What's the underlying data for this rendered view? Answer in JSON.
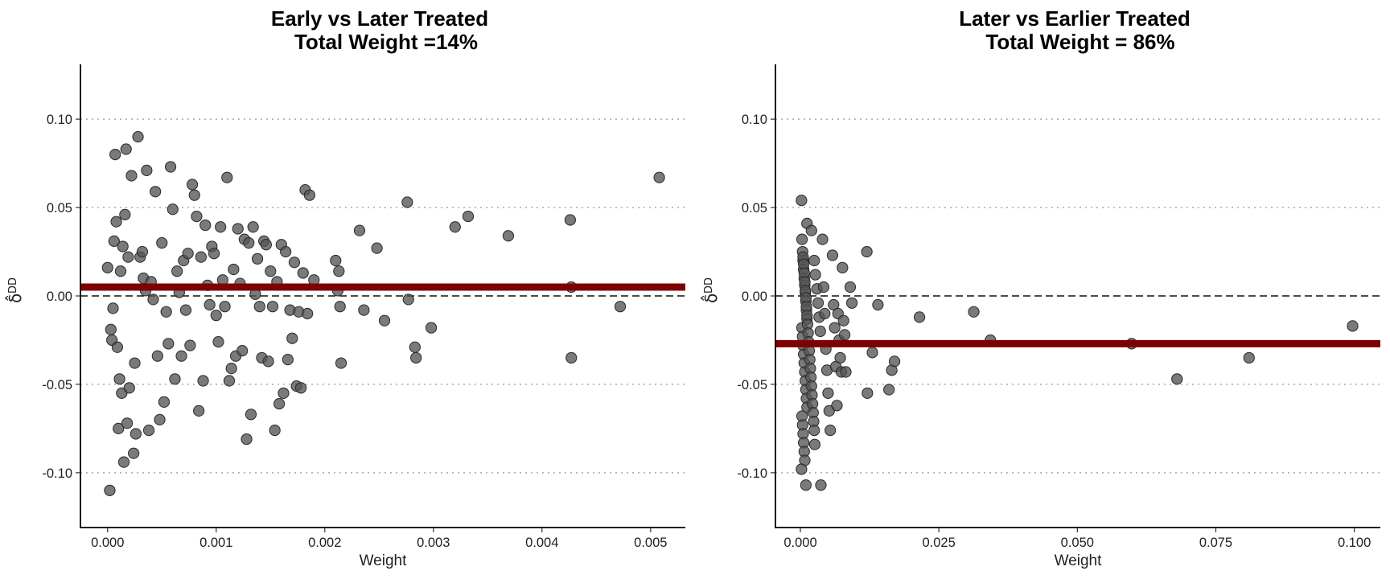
{
  "chart_data": [
    {
      "type": "scatter",
      "title_line1": "Early vs Later Treated",
      "title_line2": "Total Weight =14%",
      "xlabel": "Weight",
      "ylabel": "δ̂",
      "ylabel_sup": "DD",
      "xlim": [
        -0.00025,
        0.00532
      ],
      "ylim": [
        -0.131,
        0.131
      ],
      "x_ticks": [
        0.0,
        0.001,
        0.002,
        0.003,
        0.004,
        0.005
      ],
      "x_tick_labels": [
        "0.000",
        "0.001",
        "0.002",
        "0.003",
        "0.004",
        "0.005"
      ],
      "y_ticks": [
        -0.1,
        -0.05,
        0.0,
        0.05,
        0.1
      ],
      "y_tick_labels": [
        "-0.10",
        "-0.05",
        "0.00",
        "0.05",
        "0.10"
      ],
      "grid": "horizontal dotted at y ticks",
      "reference_line_y": 0.0,
      "average_line_y": 0.005,
      "average_line_color": "#7f0000",
      "point_color": "#555555",
      "points": [
        [
          0.0,
          0.016
        ],
        [
          2e-05,
          -0.11
        ],
        [
          3e-05,
          -0.019
        ],
        [
          4e-05,
          -0.025
        ],
        [
          5e-05,
          -0.007
        ],
        [
          6e-05,
          0.031
        ],
        [
          7e-05,
          0.08
        ],
        [
          8e-05,
          0.042
        ],
        [
          9e-05,
          -0.029
        ],
        [
          0.0001,
          -0.075
        ],
        [
          0.00011,
          -0.047
        ],
        [
          0.00012,
          0.014
        ],
        [
          0.00013,
          -0.055
        ],
        [
          0.00014,
          0.028
        ],
        [
          0.00015,
          -0.094
        ],
        [
          0.00016,
          0.046
        ],
        [
          0.00017,
          0.083
        ],
        [
          0.00018,
          -0.072
        ],
        [
          0.00019,
          0.022
        ],
        [
          0.0002,
          -0.052
        ],
        [
          0.00022,
          0.068
        ],
        [
          0.00024,
          -0.089
        ],
        [
          0.00025,
          -0.038
        ],
        [
          0.00026,
          -0.078
        ],
        [
          0.00028,
          0.09
        ],
        [
          0.0003,
          0.022
        ],
        [
          0.00032,
          0.025
        ],
        [
          0.00033,
          0.01
        ],
        [
          0.00035,
          0.003
        ],
        [
          0.00036,
          0.071
        ],
        [
          0.00038,
          -0.076
        ],
        [
          0.0004,
          0.008
        ],
        [
          0.00042,
          -0.002
        ],
        [
          0.00044,
          0.059
        ],
        [
          0.00046,
          -0.034
        ],
        [
          0.00048,
          -0.07
        ],
        [
          0.0005,
          0.03
        ],
        [
          0.00052,
          -0.06
        ],
        [
          0.00054,
          -0.009
        ],
        [
          0.00056,
          -0.027
        ],
        [
          0.00058,
          0.073
        ],
        [
          0.0006,
          0.049
        ],
        [
          0.00062,
          -0.047
        ],
        [
          0.00064,
          0.014
        ],
        [
          0.00066,
          0.002
        ],
        [
          0.00068,
          -0.034
        ],
        [
          0.0007,
          0.02
        ],
        [
          0.00072,
          -0.008
        ],
        [
          0.00074,
          0.024
        ],
        [
          0.00076,
          -0.028
        ],
        [
          0.00078,
          0.063
        ],
        [
          0.0008,
          0.057
        ],
        [
          0.00082,
          0.045
        ],
        [
          0.00084,
          -0.065
        ],
        [
          0.00086,
          0.022
        ],
        [
          0.00088,
          -0.048
        ],
        [
          0.0009,
          0.04
        ],
        [
          0.00092,
          0.006
        ],
        [
          0.00094,
          -0.005
        ],
        [
          0.00096,
          0.028
        ],
        [
          0.00098,
          0.024
        ],
        [
          0.001,
          -0.011
        ],
        [
          0.00102,
          -0.026
        ],
        [
          0.00104,
          0.039
        ],
        [
          0.00106,
          0.009
        ],
        [
          0.00108,
          -0.006
        ],
        [
          0.0011,
          0.067
        ],
        [
          0.00112,
          -0.048
        ],
        [
          0.00114,
          -0.041
        ],
        [
          0.00116,
          0.015
        ],
        [
          0.00118,
          -0.034
        ],
        [
          0.0012,
          0.038
        ],
        [
          0.00122,
          0.007
        ],
        [
          0.00124,
          -0.031
        ],
        [
          0.00126,
          0.032
        ],
        [
          0.00128,
          -0.081
        ],
        [
          0.0013,
          0.03
        ],
        [
          0.00132,
          -0.067
        ],
        [
          0.00134,
          0.039
        ],
        [
          0.00136,
          0.001
        ],
        [
          0.00138,
          0.021
        ],
        [
          0.0014,
          -0.006
        ],
        [
          0.00142,
          -0.035
        ],
        [
          0.00144,
          0.031
        ],
        [
          0.00146,
          0.029
        ],
        [
          0.00148,
          -0.037
        ],
        [
          0.0015,
          0.014
        ],
        [
          0.00152,
          -0.006
        ],
        [
          0.00154,
          -0.076
        ],
        [
          0.00156,
          0.008
        ],
        [
          0.00158,
          -0.061
        ],
        [
          0.0016,
          0.029
        ],
        [
          0.00162,
          -0.055
        ],
        [
          0.00164,
          0.025
        ],
        [
          0.00166,
          -0.036
        ],
        [
          0.00168,
          -0.008
        ],
        [
          0.0017,
          -0.024
        ],
        [
          0.00172,
          0.019
        ],
        [
          0.00174,
          -0.051
        ],
        [
          0.00176,
          -0.009
        ],
        [
          0.00178,
          -0.052
        ],
        [
          0.0018,
          0.013
        ],
        [
          0.00182,
          0.06
        ],
        [
          0.00184,
          -0.01
        ],
        [
          0.00186,
          0.057
        ],
        [
          0.0019,
          0.009
        ],
        [
          0.0021,
          0.02
        ],
        [
          0.00212,
          0.003
        ],
        [
          0.00213,
          0.014
        ],
        [
          0.00214,
          -0.006
        ],
        [
          0.00215,
          -0.038
        ],
        [
          0.00232,
          0.037
        ],
        [
          0.00236,
          -0.008
        ],
        [
          0.00248,
          0.027
        ],
        [
          0.00255,
          -0.014
        ],
        [
          0.00276,
          0.053
        ],
        [
          0.00277,
          -0.002
        ],
        [
          0.00283,
          -0.029
        ],
        [
          0.00284,
          -0.035
        ],
        [
          0.00298,
          -0.018
        ],
        [
          0.0032,
          0.039
        ],
        [
          0.00332,
          0.045
        ],
        [
          0.00369,
          0.034
        ],
        [
          0.00426,
          0.043
        ],
        [
          0.00427,
          0.005
        ],
        [
          0.00427,
          -0.035
        ],
        [
          0.00472,
          -0.006
        ],
        [
          0.00508,
          0.067
        ]
      ]
    },
    {
      "type": "scatter",
      "title_line1": "Later vs Earlier Treated",
      "title_line2": "Total Weight = 86%",
      "xlabel": "Weight",
      "ylabel": "δ̂",
      "ylabel_sup": "DD",
      "xlim": [
        -0.0045,
        0.1047
      ],
      "ylim": [
        -0.131,
        0.131
      ],
      "x_ticks": [
        0.0,
        0.025,
        0.05,
        0.075,
        0.1
      ],
      "x_tick_labels": [
        "0.000",
        "0.025",
        "0.050",
        "0.075",
        "0.100"
      ],
      "y_ticks": [
        -0.1,
        -0.05,
        0.0,
        0.05,
        0.1
      ],
      "y_tick_labels": [
        "-0.10",
        "-0.05",
        "0.00",
        "0.05",
        "0.10"
      ],
      "grid": "horizontal dotted at y ticks",
      "reference_line_y": 0.0,
      "average_line_y": -0.027,
      "average_line_color": "#7f0000",
      "point_color": "#555555",
      "points": [
        [
          0.0002,
          0.054
        ],
        [
          0.0003,
          0.032
        ],
        [
          0.0004,
          0.025
        ],
        [
          0.0005,
          0.02
        ],
        [
          0.0006,
          0.015
        ],
        [
          0.0007,
          0.01
        ],
        [
          0.0008,
          0.006
        ],
        [
          0.0009,
          0.002
        ],
        [
          0.001,
          -0.003
        ],
        [
          0.0011,
          -0.008
        ],
        [
          0.0012,
          -0.013
        ],
        [
          0.0003,
          -0.018
        ],
        [
          0.0004,
          -0.023
        ],
        [
          0.0005,
          -0.028
        ],
        [
          0.0006,
          -0.033
        ],
        [
          0.0007,
          -0.038
        ],
        [
          0.0008,
          -0.043
        ],
        [
          0.0009,
          -0.048
        ],
        [
          0.001,
          -0.053
        ],
        [
          0.0011,
          -0.058
        ],
        [
          0.0012,
          -0.063
        ],
        [
          0.0003,
          -0.068
        ],
        [
          0.0004,
          -0.073
        ],
        [
          0.0005,
          -0.078
        ],
        [
          0.0006,
          -0.083
        ],
        [
          0.0007,
          -0.088
        ],
        [
          0.0008,
          -0.093
        ],
        [
          0.0002,
          -0.098
        ],
        [
          0.001,
          -0.107
        ],
        [
          0.0005,
          0.022
        ],
        [
          0.0006,
          0.018
        ],
        [
          0.0007,
          0.013
        ],
        [
          0.0008,
          0.008
        ],
        [
          0.0009,
          0.003
        ],
        [
          0.001,
          -0.001
        ],
        [
          0.0011,
          -0.006
        ],
        [
          0.0012,
          -0.011
        ],
        [
          0.0013,
          -0.016
        ],
        [
          0.0014,
          -0.021
        ],
        [
          0.0015,
          -0.026
        ],
        [
          0.0016,
          -0.031
        ],
        [
          0.0017,
          -0.036
        ],
        [
          0.0018,
          -0.041
        ],
        [
          0.0019,
          -0.046
        ],
        [
          0.002,
          -0.051
        ],
        [
          0.0021,
          -0.056
        ],
        [
          0.0022,
          -0.061
        ],
        [
          0.0023,
          -0.066
        ],
        [
          0.0024,
          -0.071
        ],
        [
          0.0025,
          -0.076
        ],
        [
          0.0026,
          -0.084
        ],
        [
          0.0012,
          0.041
        ],
        [
          0.002,
          0.037
        ],
        [
          0.0025,
          0.02
        ],
        [
          0.0027,
          0.012
        ],
        [
          0.003,
          0.004
        ],
        [
          0.0032,
          -0.004
        ],
        [
          0.0034,
          -0.012
        ],
        [
          0.0036,
          -0.02
        ],
        [
          0.0037,
          -0.107
        ],
        [
          0.004,
          0.032
        ],
        [
          0.0042,
          0.005
        ],
        [
          0.0044,
          -0.01
        ],
        [
          0.0046,
          -0.03
        ],
        [
          0.0048,
          -0.042
        ],
        [
          0.005,
          -0.055
        ],
        [
          0.0052,
          -0.065
        ],
        [
          0.0054,
          -0.076
        ],
        [
          0.0058,
          0.023
        ],
        [
          0.006,
          -0.005
        ],
        [
          0.0062,
          -0.018
        ],
        [
          0.0064,
          -0.04
        ],
        [
          0.0066,
          -0.062
        ],
        [
          0.0068,
          -0.01
        ],
        [
          0.007,
          -0.025
        ],
        [
          0.0072,
          -0.035
        ],
        [
          0.0074,
          -0.043
        ],
        [
          0.0076,
          0.016
        ],
        [
          0.0078,
          -0.014
        ],
        [
          0.008,
          -0.022
        ],
        [
          0.0082,
          -0.043
        ],
        [
          0.009,
          0.005
        ],
        [
          0.0093,
          -0.004
        ],
        [
          0.012,
          0.025
        ],
        [
          0.0121,
          -0.055
        ],
        [
          0.013,
          -0.032
        ],
        [
          0.014,
          -0.005
        ],
        [
          0.016,
          -0.053
        ],
        [
          0.0165,
          -0.042
        ],
        [
          0.017,
          -0.037
        ],
        [
          0.0215,
          -0.012
        ],
        [
          0.0313,
          -0.009
        ],
        [
          0.0343,
          -0.025
        ],
        [
          0.0598,
          -0.027
        ],
        [
          0.068,
          -0.047
        ],
        [
          0.081,
          -0.035
        ],
        [
          0.0997,
          -0.017
        ]
      ]
    }
  ]
}
